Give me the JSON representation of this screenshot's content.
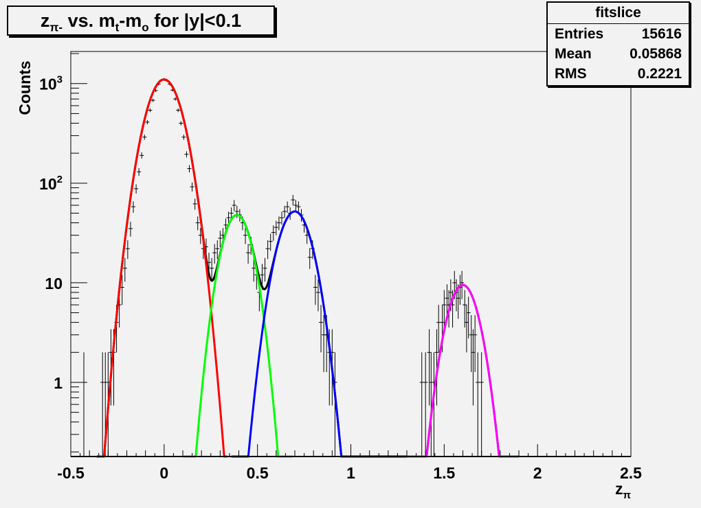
{
  "chart_data": {
    "type": "scatter",
    "title": "z_π- vs. m_t-m_o for |y|<0.1",
    "title_parts": {
      "z": "z",
      "z_sub": "π-",
      "mid": " vs. m",
      "m_sub": "t",
      "dash": "-m",
      "o_sub": "o",
      "tail": " for |y|<0.1"
    },
    "xlabel": "z",
    "xlabel_sub": "π",
    "ylabel": "Counts",
    "xlim": [
      -0.5,
      2.5
    ],
    "ylim": [
      0.18,
      2100
    ],
    "yscale": "log",
    "grid": false,
    "x_ticks": [
      "-0.5",
      "0",
      "0.5",
      "1",
      "1.5",
      "2",
      "2.5"
    ],
    "x_tick_values": [
      -0.5,
      0,
      0.5,
      1,
      1.5,
      2,
      2.5
    ],
    "y_ticks": [
      {
        "value": 1,
        "base": "1",
        "exp": ""
      },
      {
        "value": 10,
        "base": "10",
        "exp": ""
      },
      {
        "value": 100,
        "base": "10",
        "exp": "2"
      },
      {
        "value": 1000,
        "base": "10",
        "exp": "3"
      }
    ],
    "stats": {
      "name": "fitslice",
      "rows": [
        {
          "label": "Entries",
          "value": "15616"
        },
        {
          "label": "Mean",
          "value": "0.05868"
        },
        {
          "label": "RMS",
          "value": "0.2221"
        }
      ]
    },
    "points": [
      [
        -0.43,
        1
      ],
      [
        -0.33,
        1
      ],
      [
        -0.315,
        1
      ],
      [
        -0.3,
        1
      ],
      [
        -0.285,
        2
      ],
      [
        -0.27,
        2
      ],
      [
        -0.255,
        4
      ],
      [
        -0.24,
        6
      ],
      [
        -0.225,
        9
      ],
      [
        -0.21,
        14
      ],
      [
        -0.195,
        22
      ],
      [
        -0.18,
        35
      ],
      [
        -0.165,
        58
      ],
      [
        -0.15,
        88
      ],
      [
        -0.135,
        130
      ],
      [
        -0.12,
        190
      ],
      [
        -0.105,
        290
      ],
      [
        -0.09,
        410
      ],
      [
        -0.075,
        540
      ],
      [
        -0.06,
        680
      ],
      [
        -0.045,
        850
      ],
      [
        -0.03,
        990
      ],
      [
        -0.015,
        1080
      ],
      [
        0,
        1100
      ],
      [
        0.015,
        1070
      ],
      [
        0.03,
        990
      ],
      [
        0.045,
        860
      ],
      [
        0.06,
        700
      ],
      [
        0.075,
        540
      ],
      [
        0.09,
        400
      ],
      [
        0.105,
        290
      ],
      [
        0.12,
        195
      ],
      [
        0.135,
        140
      ],
      [
        0.15,
        92
      ],
      [
        0.165,
        62
      ],
      [
        0.18,
        40
      ],
      [
        0.195,
        30
      ],
      [
        0.21,
        22
      ],
      [
        0.225,
        23
      ],
      [
        0.24,
        16
      ],
      [
        0.255,
        14
      ],
      [
        0.27,
        20
      ],
      [
        0.285,
        22
      ],
      [
        0.3,
        28
      ],
      [
        0.315,
        30
      ],
      [
        0.33,
        38
      ],
      [
        0.345,
        45
      ],
      [
        0.36,
        50
      ],
      [
        0.375,
        60
      ],
      [
        0.39,
        52
      ],
      [
        0.405,
        48
      ],
      [
        0.42,
        40
      ],
      [
        0.435,
        30
      ],
      [
        0.45,
        20
      ],
      [
        0.465,
        24
      ],
      [
        0.48,
        14
      ],
      [
        0.495,
        12
      ],
      [
        0.51,
        8
      ],
      [
        0.525,
        12
      ],
      [
        0.54,
        14
      ],
      [
        0.555,
        22
      ],
      [
        0.57,
        26
      ],
      [
        0.585,
        32
      ],
      [
        0.6,
        36
      ],
      [
        0.615,
        40
      ],
      [
        0.63,
        45
      ],
      [
        0.645,
        52
      ],
      [
        0.66,
        58
      ],
      [
        0.675,
        50
      ],
      [
        0.69,
        68
      ],
      [
        0.705,
        60
      ],
      [
        0.72,
        58
      ],
      [
        0.735,
        48
      ],
      [
        0.75,
        38
      ],
      [
        0.765,
        30
      ],
      [
        0.78,
        18
      ],
      [
        0.795,
        22
      ],
      [
        0.81,
        9
      ],
      [
        0.825,
        8
      ],
      [
        0.84,
        4
      ],
      [
        0.855,
        3
      ],
      [
        0.87,
        3
      ],
      [
        0.885,
        2
      ],
      [
        0.9,
        2
      ],
      [
        0.915,
        1
      ],
      [
        1.38,
        1
      ],
      [
        1.4,
        1
      ],
      [
        1.42,
        2
      ],
      [
        1.43,
        1
      ],
      [
        1.445,
        1
      ],
      [
        1.46,
        2
      ],
      [
        1.47,
        4
      ],
      [
        1.49,
        4
      ],
      [
        1.5,
        6
      ],
      [
        1.515,
        7
      ],
      [
        1.525,
        6
      ],
      [
        1.535,
        8
      ],
      [
        1.545,
        6
      ],
      [
        1.555,
        10
      ],
      [
        1.565,
        8
      ],
      [
        1.575,
        7
      ],
      [
        1.585,
        9
      ],
      [
        1.595,
        10
      ],
      [
        1.61,
        6
      ],
      [
        1.62,
        4
      ],
      [
        1.63,
        5
      ],
      [
        1.645,
        3
      ],
      [
        1.655,
        2
      ],
      [
        1.665,
        3
      ],
      [
        1.68,
        1
      ],
      [
        1.7,
        1
      ]
    ],
    "fits": [
      {
        "color": "#ff0000",
        "amplitude": 1100,
        "mean": 0.0,
        "sigma": 0.077,
        "range": [
          -0.35,
          0.34
        ]
      },
      {
        "color": "#00ff00",
        "amplitude": 48,
        "mean": 0.39,
        "sigma": 0.066,
        "range": [
          0.1,
          0.69
        ]
      },
      {
        "color": "#0000ff",
        "amplitude": 52,
        "mean": 0.7,
        "sigma": 0.074,
        "range": [
          0.36,
          1.0
        ]
      },
      {
        "color": "#ff00ff",
        "amplitude": 9.5,
        "mean": 1.6,
        "sigma": 0.069,
        "range": [
          1.3,
          1.9
        ]
      }
    ],
    "total_fit_color": "#000000"
  }
}
